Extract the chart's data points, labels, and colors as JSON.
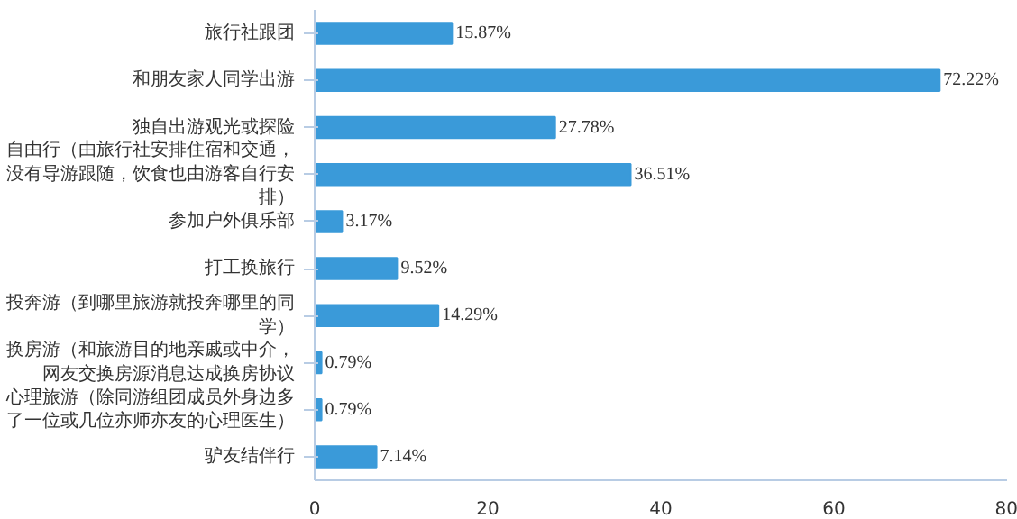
{
  "chart_data": {
    "type": "bar",
    "orientation": "horizontal",
    "categories": [
      "旅行社跟团",
      "和朋友家人同学出游",
      "独自出游观光或探险",
      "自由行（由旅行社安排住宿和交通，没有导游跟随，饮食也由游客自行安排）",
      "参加户外俱乐部",
      "打工换旅行",
      "投奔游（到哪里旅游就投奔哪里的同学）",
      "换房游（和旅游目的地亲戚或中介，网友交换房源消息达成换房协议",
      "心理旅游（除同游组团成员外身边多了一位或几位亦师亦友的心理医生）",
      "驴友结伴行"
    ],
    "values": [
      15.87,
      72.22,
      27.78,
      36.51,
      3.17,
      9.52,
      14.29,
      0.79,
      0.79,
      7.14
    ],
    "value_labels": [
      "15.87%",
      "72.22%",
      "27.78%",
      "36.51%",
      "3.17%",
      "9.52%",
      "14.29%",
      "0.79%",
      "0.79%",
      "7.14%"
    ],
    "color": "#3a9ad9",
    "xlim": [
      0,
      80
    ],
    "xticks": [
      0,
      20,
      40,
      60,
      80
    ],
    "grid": false
  }
}
